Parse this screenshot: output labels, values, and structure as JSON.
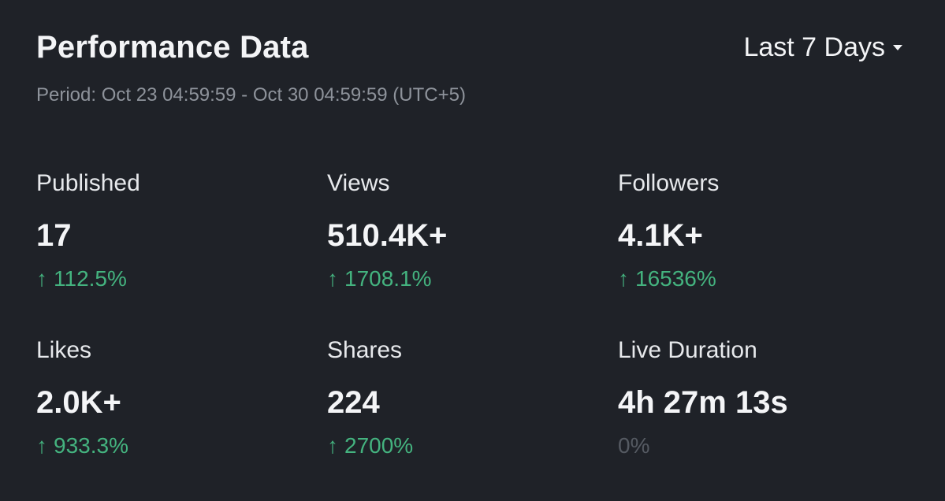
{
  "header": {
    "title": "Performance Data",
    "range_label": "Last 7 Days",
    "period": "Period: Oct 23 04:59:59 - Oct 30 04:59:59 (UTC+5)"
  },
  "metrics": [
    {
      "label": "Published",
      "value": "17",
      "change": "112.5%",
      "trend": "up"
    },
    {
      "label": "Views",
      "value": "510.4K+",
      "change": "1708.1%",
      "trend": "up"
    },
    {
      "label": "Followers",
      "value": "4.1K+",
      "change": "16536%",
      "trend": "up"
    },
    {
      "label": "Likes",
      "value": "2.0K+",
      "change": "933.3%",
      "trend": "up"
    },
    {
      "label": "Shares",
      "value": "224",
      "change": "2700%",
      "trend": "up"
    },
    {
      "label": "Live Duration",
      "value": "4h 27m 13s",
      "change": "0%",
      "trend": "flat"
    }
  ],
  "icons": {
    "trend_up": "arrow-up-icon",
    "range_dropdown": "caret-down-icon"
  },
  "colors": {
    "background": "#1f2228",
    "positive": "#44b37f",
    "neutral": "#555a62",
    "muted_text": "#8e939b"
  }
}
